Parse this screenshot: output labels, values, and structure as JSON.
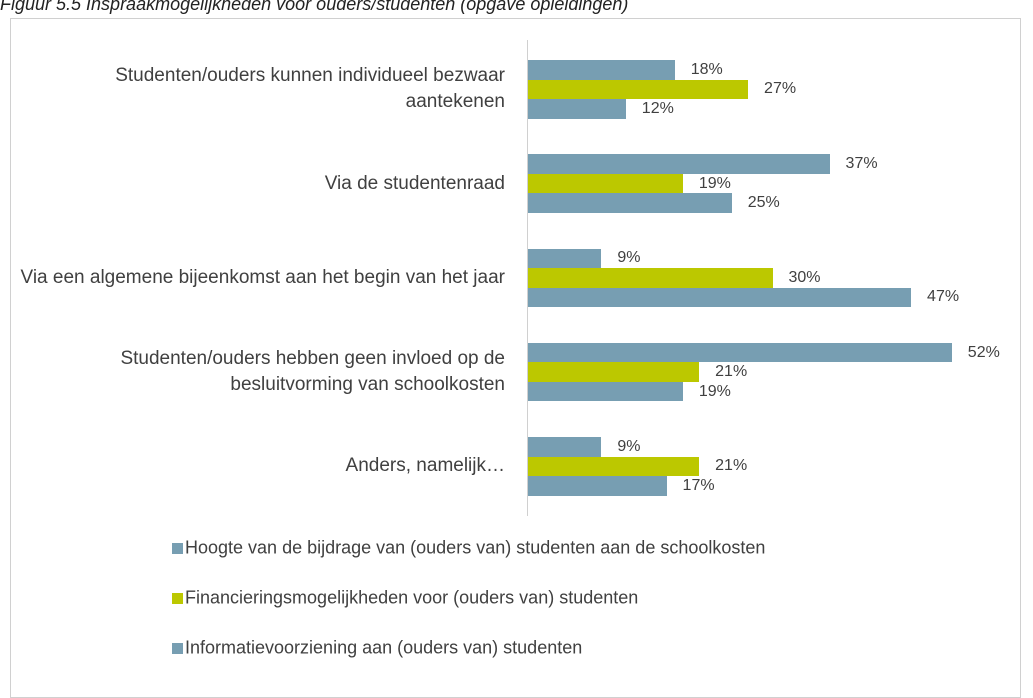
{
  "chart_data": {
    "type": "bar",
    "orientation": "horizontal",
    "title": "Figuur 5.5 Inspraakmogelijkheden voor ouders/studenten (opgave opleidingen)",
    "categories": [
      "Studenten/ouders kunnen individueel bezwaar aantekenen",
      "Via de studentenraad",
      "Via een algemene bijeenkomst aan het begin van het jaar",
      "Studenten/ouders hebben geen invloed op de besluitvorming van schoolkosten",
      "Anders, namelijk…"
    ],
    "series": [
      {
        "name": "Hoogte van de bijdrage van (ouders van) studenten aan de schoolkosten",
        "color": "#779eb2",
        "values": [
          18,
          37,
          9,
          52,
          9
        ],
        "value_labels": [
          "18%",
          "37%",
          "9%",
          "52%",
          "9%"
        ]
      },
      {
        "name": "Financieringsmogelijkheden voor (ouders van) studenten",
        "color": "#bcc800",
        "values": [
          27,
          19,
          30,
          21,
          21
        ],
        "value_labels": [
          "27%",
          "19%",
          "30%",
          "21%",
          "21%"
        ]
      },
      {
        "name": "Informatievoorziening aan (ouders van) studenten",
        "color": "#779eb2",
        "values": [
          12,
          25,
          47,
          19,
          17
        ],
        "value_labels": [
          "12%",
          "25%",
          "47%",
          "19%",
          "17%"
        ]
      }
    ],
    "legend": "bottom"
  }
}
